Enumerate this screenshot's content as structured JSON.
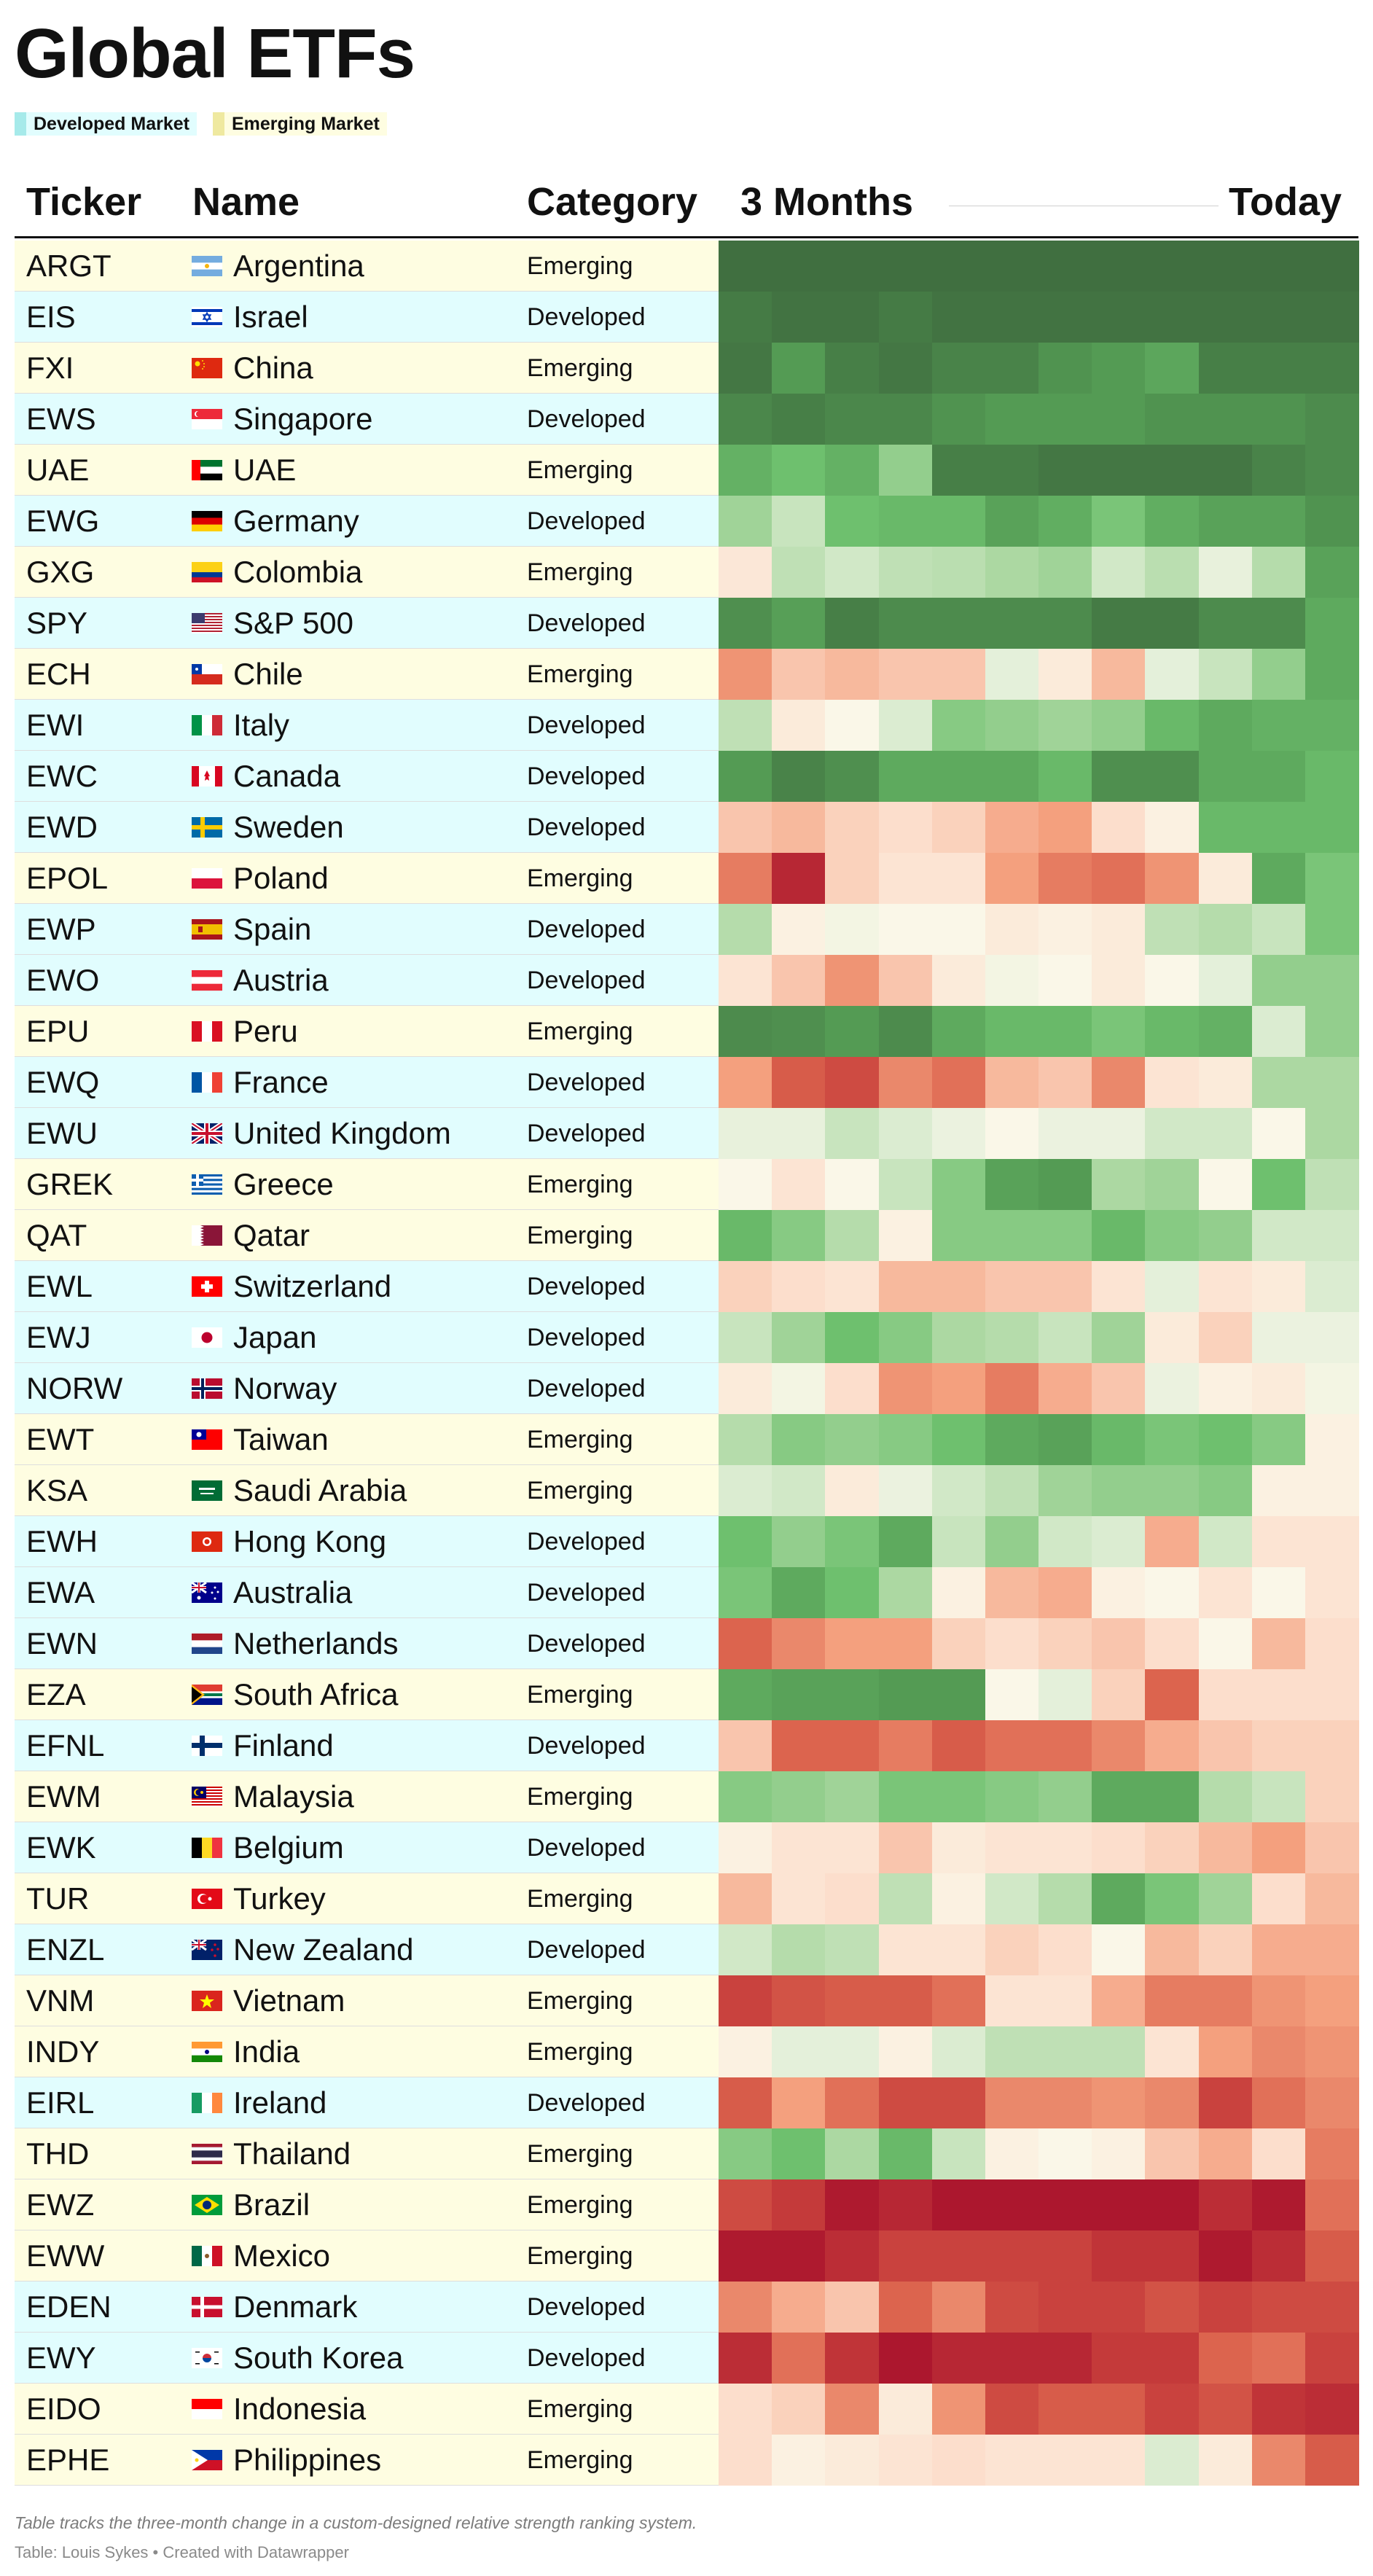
{
  "title": "Global ETFs",
  "legend": [
    {
      "label": "Developed Market",
      "color": "#a6eaea"
    },
    {
      "label": "Emerging Market",
      "color": "#efe9a0"
    }
  ],
  "colors": {
    "developed_row": "#e1fdfe",
    "emerging_row": "#fefde1"
  },
  "headers": {
    "ticker": "Ticker",
    "name": "Name",
    "category": "Category",
    "start": "3 Months",
    "end": "Today"
  },
  "footnote": "Table tracks the three-month change in a custom-designed relative strength ranking system.",
  "source": "Table: Louis Sykes • Created with Datawrapper",
  "chart_data": {
    "type": "heatmap",
    "columns": 12,
    "scale": "1 = strongest (dark green) … 100 = weakest (dark red)",
    "rows": [
      {
        "ticker": "ARGT",
        "name": "Argentina",
        "category": "Emerging",
        "flag": "ar",
        "values": [
          1,
          1,
          1,
          1,
          1,
          1,
          1,
          1,
          1,
          1,
          1,
          1
        ]
      },
      {
        "ticker": "EIS",
        "name": "Israel",
        "category": "Developed",
        "flag": "il",
        "values": [
          4,
          2,
          2,
          4,
          2,
          2,
          2,
          2,
          2,
          2,
          2,
          2
        ]
      },
      {
        "ticker": "FXI",
        "name": "China",
        "category": "Emerging",
        "flag": "cn",
        "values": [
          3,
          12,
          5,
          3,
          6,
          6,
          10,
          12,
          15,
          5,
          5,
          5
        ]
      },
      {
        "ticker": "EWS",
        "name": "Singapore",
        "category": "Developed",
        "flag": "sg",
        "values": [
          7,
          5,
          7,
          7,
          10,
          12,
          12,
          12,
          10,
          10,
          10,
          8
        ]
      },
      {
        "ticker": "UAE",
        "name": "UAE",
        "category": "Emerging",
        "flag": "ae",
        "values": [
          18,
          22,
          18,
          28,
          5,
          5,
          3,
          3,
          3,
          3,
          6,
          8
        ]
      },
      {
        "ticker": "EWG",
        "name": "Germany",
        "category": "Developed",
        "flag": "de",
        "values": [
          30,
          38,
          22,
          20,
          20,
          14,
          17,
          24,
          17,
          14,
          14,
          10
        ]
      },
      {
        "ticker": "GXG",
        "name": "Colombia",
        "category": "Emerging",
        "flag": "co",
        "values": [
          55,
          36,
          40,
          36,
          35,
          32,
          30,
          40,
          35,
          45,
          34,
          14
        ]
      },
      {
        "ticker": "SPY",
        "name": "S&P 500",
        "category": "Developed",
        "flag": "us",
        "values": [
          9,
          13,
          5,
          8,
          8,
          8,
          8,
          4,
          4,
          8,
          8,
          16
        ]
      },
      {
        "ticker": "ECH",
        "name": "Chile",
        "category": "Emerging",
        "flag": "cl",
        "values": [
          70,
          62,
          64,
          62,
          62,
          44,
          54,
          64,
          44,
          38,
          28,
          16
        ]
      },
      {
        "ticker": "EWI",
        "name": "Italy",
        "category": "Developed",
        "flag": "it",
        "values": [
          36,
          54,
          50,
          42,
          26,
          28,
          30,
          28,
          20,
          16,
          18,
          18
        ]
      },
      {
        "ticker": "EWC",
        "name": "Canada",
        "category": "Developed",
        "flag": "ca",
        "values": [
          12,
          6,
          9,
          16,
          16,
          16,
          20,
          9,
          9,
          16,
          16,
          20
        ]
      },
      {
        "ticker": "EWD",
        "name": "Sweden",
        "category": "Developed",
        "flag": "se",
        "values": [
          62,
          64,
          60,
          58,
          60,
          66,
          68,
          58,
          52,
          20,
          20,
          20
        ]
      },
      {
        "ticker": "EPOL",
        "name": "Poland",
        "category": "Emerging",
        "flag": "pl",
        "values": [
          74,
          94,
          60,
          56,
          56,
          68,
          74,
          76,
          70,
          54,
          16,
          24
        ]
      },
      {
        "ticker": "EWP",
        "name": "Spain",
        "category": "Developed",
        "flag": "es",
        "values": [
          34,
          52,
          48,
          50,
          50,
          54,
          52,
          54,
          36,
          34,
          38,
          24
        ]
      },
      {
        "ticker": "EWO",
        "name": "Austria",
        "category": "Developed",
        "flag": "at",
        "values": [
          56,
          62,
          70,
          62,
          54,
          48,
          50,
          54,
          50,
          44,
          28,
          28
        ]
      },
      {
        "ticker": "EPU",
        "name": "Peru",
        "category": "Emerging",
        "flag": "pe",
        "values": [
          8,
          9,
          12,
          8,
          16,
          20,
          20,
          24,
          20,
          18,
          42,
          28
        ]
      },
      {
        "ticker": "EWQ",
        "name": "France",
        "category": "Developed",
        "flag": "fr",
        "values": [
          68,
          80,
          84,
          72,
          76,
          64,
          62,
          72,
          56,
          54,
          32,
          32
        ]
      },
      {
        "ticker": "EWU",
        "name": "United Kingdom",
        "category": "Developed",
        "flag": "gb",
        "values": [
          45,
          45,
          38,
          42,
          46,
          50,
          46,
          46,
          40,
          40,
          50,
          32
        ]
      },
      {
        "ticker": "GREK",
        "name": "Greece",
        "category": "Emerging",
        "flag": "gr",
        "values": [
          50,
          56,
          50,
          38,
          26,
          14,
          12,
          32,
          30,
          50,
          22,
          36
        ]
      },
      {
        "ticker": "QAT",
        "name": "Qatar",
        "category": "Emerging",
        "flag": "qa",
        "values": [
          20,
          26,
          34,
          52,
          26,
          26,
          26,
          20,
          26,
          28,
          40,
          40
        ]
      },
      {
        "ticker": "EWL",
        "name": "Switzerland",
        "category": "Developed",
        "flag": "ch",
        "values": [
          60,
          58,
          56,
          64,
          64,
          62,
          62,
          56,
          44,
          56,
          54,
          42
        ]
      },
      {
        "ticker": "EWJ",
        "name": "Japan",
        "category": "Developed",
        "flag": "jp",
        "values": [
          38,
          30,
          22,
          26,
          32,
          34,
          38,
          30,
          54,
          60,
          46,
          46
        ]
      },
      {
        "ticker": "NORW",
        "name": "Norway",
        "category": "Developed",
        "flag": "no",
        "values": [
          54,
          48,
          58,
          70,
          68,
          74,
          66,
          62,
          46,
          52,
          54,
          48
        ]
      },
      {
        "ticker": "EWT",
        "name": "Taiwan",
        "category": "Emerging",
        "flag": "tw",
        "values": [
          34,
          26,
          28,
          26,
          22,
          16,
          14,
          20,
          24,
          22,
          26,
          52
        ]
      },
      {
        "ticker": "KSA",
        "name": "Saudi Arabia",
        "category": "Emerging",
        "flag": "sa",
        "values": [
          42,
          40,
          54,
          46,
          40,
          36,
          30,
          28,
          28,
          26,
          52,
          52
        ]
      },
      {
        "ticker": "EWH",
        "name": "Hong Kong",
        "category": "Developed",
        "flag": "hk",
        "values": [
          22,
          28,
          24,
          16,
          38,
          28,
          40,
          42,
          66,
          40,
          56,
          56
        ]
      },
      {
        "ticker": "EWA",
        "name": "Australia",
        "category": "Developed",
        "flag": "au",
        "values": [
          24,
          16,
          22,
          32,
          52,
          64,
          66,
          52,
          50,
          56,
          50,
          56
        ]
      },
      {
        "ticker": "EWN",
        "name": "Netherlands",
        "category": "Developed",
        "flag": "nl",
        "values": [
          78,
          72,
          68,
          68,
          60,
          58,
          60,
          62,
          58,
          50,
          64,
          58
        ]
      },
      {
        "ticker": "EZA",
        "name": "South Africa",
        "category": "Emerging",
        "flag": "za",
        "values": [
          16,
          14,
          14,
          12,
          12,
          50,
          44,
          60,
          78,
          58,
          58,
          58
        ]
      },
      {
        "ticker": "EFNL",
        "name": "Finland",
        "category": "Developed",
        "flag": "fi",
        "values": [
          62,
          78,
          78,
          74,
          80,
          76,
          76,
          72,
          66,
          62,
          60,
          60
        ]
      },
      {
        "ticker": "EWM",
        "name": "Malaysia",
        "category": "Emerging",
        "flag": "my",
        "values": [
          26,
          28,
          30,
          24,
          24,
          26,
          28,
          16,
          16,
          34,
          38,
          60
        ]
      },
      {
        "ticker": "EWK",
        "name": "Belgium",
        "category": "Developed",
        "flag": "be",
        "values": [
          52,
          56,
          56,
          62,
          54,
          56,
          56,
          58,
          60,
          64,
          68,
          62
        ]
      },
      {
        "ticker": "TUR",
        "name": "Turkey",
        "category": "Emerging",
        "flag": "tr",
        "values": [
          64,
          56,
          58,
          36,
          52,
          40,
          34,
          16,
          24,
          30,
          58,
          64
        ]
      },
      {
        "ticker": "ENZL",
        "name": "New Zealand",
        "category": "Developed",
        "flag": "nz",
        "values": [
          40,
          34,
          36,
          56,
          56,
          60,
          58,
          50,
          64,
          60,
          66,
          66
        ]
      },
      {
        "ticker": "VNM",
        "name": "Vietnam",
        "category": "Emerging",
        "flag": "vn",
        "values": [
          86,
          82,
          80,
          80,
          76,
          56,
          56,
          66,
          74,
          74,
          70,
          68
        ]
      },
      {
        "ticker": "INDY",
        "name": "India",
        "category": "Emerging",
        "flag": "in",
        "values": [
          52,
          44,
          44,
          52,
          42,
          36,
          36,
          36,
          56,
          68,
          72,
          70
        ]
      },
      {
        "ticker": "EIRL",
        "name": "Ireland",
        "category": "Developed",
        "flag": "ie",
        "values": [
          80,
          68,
          76,
          84,
          84,
          72,
          72,
          70,
          72,
          86,
          76,
          72
        ]
      },
      {
        "ticker": "THD",
        "name": "Thailand",
        "category": "Emerging",
        "flag": "th",
        "values": [
          26,
          22,
          32,
          20,
          38,
          52,
          50,
          52,
          62,
          66,
          58,
          74
        ]
      },
      {
        "ticker": "EWZ",
        "name": "Brazil",
        "category": "Emerging",
        "flag": "br",
        "values": [
          84,
          88,
          98,
          94,
          99,
          99,
          99,
          99,
          99,
          92,
          98,
          76
        ]
      },
      {
        "ticker": "EWW",
        "name": "Mexico",
        "category": "Emerging",
        "flag": "mx",
        "values": [
          98,
          98,
          92,
          86,
          86,
          86,
          86,
          90,
          90,
          98,
          92,
          80
        ]
      },
      {
        "ticker": "EDEN",
        "name": "Denmark",
        "category": "Developed",
        "flag": "dk",
        "values": [
          72,
          66,
          62,
          78,
          72,
          84,
          86,
          86,
          82,
          86,
          84,
          84
        ]
      },
      {
        "ticker": "EWY",
        "name": "South Korea",
        "category": "Developed",
        "flag": "kr",
        "values": [
          92,
          76,
          90,
          99,
          94,
          94,
          94,
          88,
          88,
          78,
          76,
          86
        ]
      },
      {
        "ticker": "EIDO",
        "name": "Indonesia",
        "category": "Emerging",
        "flag": "id",
        "values": [
          58,
          60,
          72,
          54,
          70,
          84,
          80,
          80,
          86,
          82,
          90,
          92
        ]
      },
      {
        "ticker": "EPHE",
        "name": "Philippines",
        "category": "Emerging",
        "flag": "ph",
        "values": [
          58,
          52,
          54,
          56,
          58,
          56,
          56,
          56,
          42,
          54,
          72,
          80
        ]
      }
    ]
  }
}
